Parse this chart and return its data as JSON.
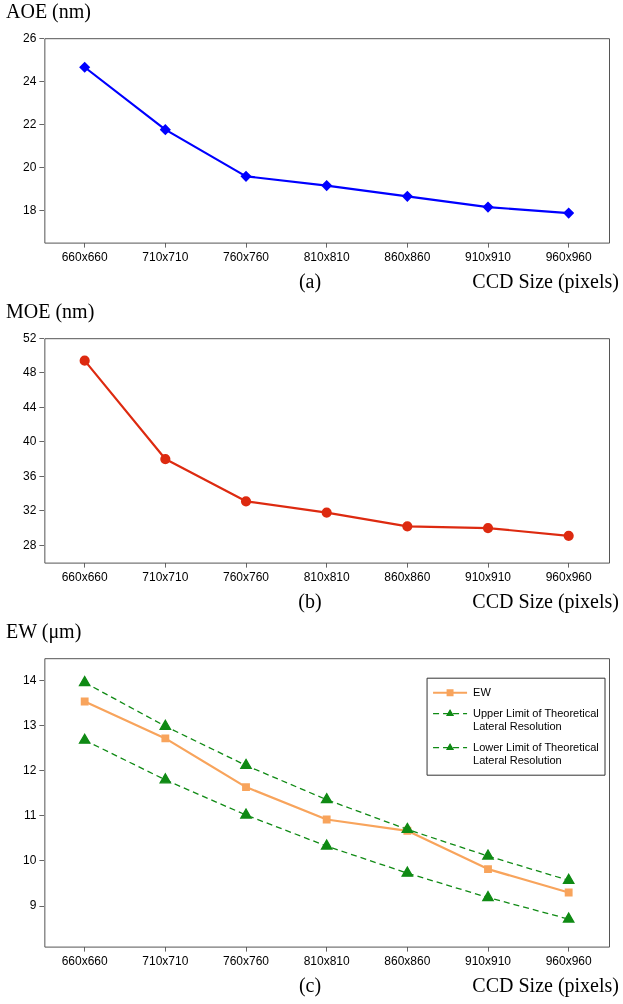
{
  "chart_data": [
    {
      "type": "line",
      "title": "(a)",
      "xlabel": "CCD Size (pixels)",
      "ylabel": "AOE (nm)",
      "categories": [
        "660x660",
        "710x710",
        "760x760",
        "810x810",
        "860x860",
        "910x910",
        "960x960"
      ],
      "series": [
        {
          "color": "#0000ff",
          "values": [
            24.65,
            21.75,
            19.58,
            19.15,
            18.65,
            18.15,
            17.87
          ],
          "marker": "diamond"
        }
      ],
      "ylim": [
        16.5,
        26
      ],
      "yticks": [
        18,
        20,
        22,
        24,
        26
      ],
      "grid": false,
      "legend": false
    },
    {
      "type": "line",
      "title": "(b)",
      "xlabel": "CCD Size (pixels)",
      "ylabel": "MOE (nm)",
      "categories": [
        "660x660",
        "710x710",
        "760x760",
        "810x810",
        "860x860",
        "910x910",
        "960x960"
      ],
      "series": [
        {
          "color": "#dd2a10",
          "values": [
            49.4,
            38.0,
            33.1,
            31.8,
            30.2,
            30.0,
            29.1
          ],
          "marker": "circle"
        }
      ],
      "ylim": [
        26,
        52
      ],
      "yticks": [
        28,
        32,
        36,
        40,
        44,
        48,
        52
      ],
      "grid": false,
      "legend": false
    },
    {
      "type": "line",
      "title": "(c)",
      "xlabel": "CCD Size (pixels)",
      "ylabel": "EW (μm)",
      "categories": [
        "660x660",
        "710x710",
        "760x760",
        "810x810",
        "860x860",
        "910x910",
        "960x960"
      ],
      "series": [
        {
          "name": "EW",
          "color": "#f8a45c",
          "values": [
            13.54,
            12.72,
            11.64,
            10.92,
            10.67,
            9.82,
            9.3
          ],
          "marker": "square",
          "line_style": "solid"
        },
        {
          "name": "Upper Limit of Theoretical Lateral Resolution",
          "color": "#0f8a14",
          "values": [
            13.96,
            12.99,
            12.12,
            11.36,
            10.7,
            10.11,
            9.57
          ],
          "marker": "triangle",
          "line_style": "dashed"
        },
        {
          "name": "Lower Limit of Theoretical Lateral Resolution",
          "color": "#0f8a14",
          "values": [
            12.68,
            11.8,
            11.02,
            10.33,
            9.73,
            9.19,
            8.71
          ],
          "marker": "triangle",
          "line_style": "dashed"
        }
      ],
      "ylim": [
        8.1,
        14.5
      ],
      "yticks": [
        9,
        10,
        11,
        12,
        13,
        14
      ],
      "grid": false,
      "legend": "top right"
    }
  ]
}
